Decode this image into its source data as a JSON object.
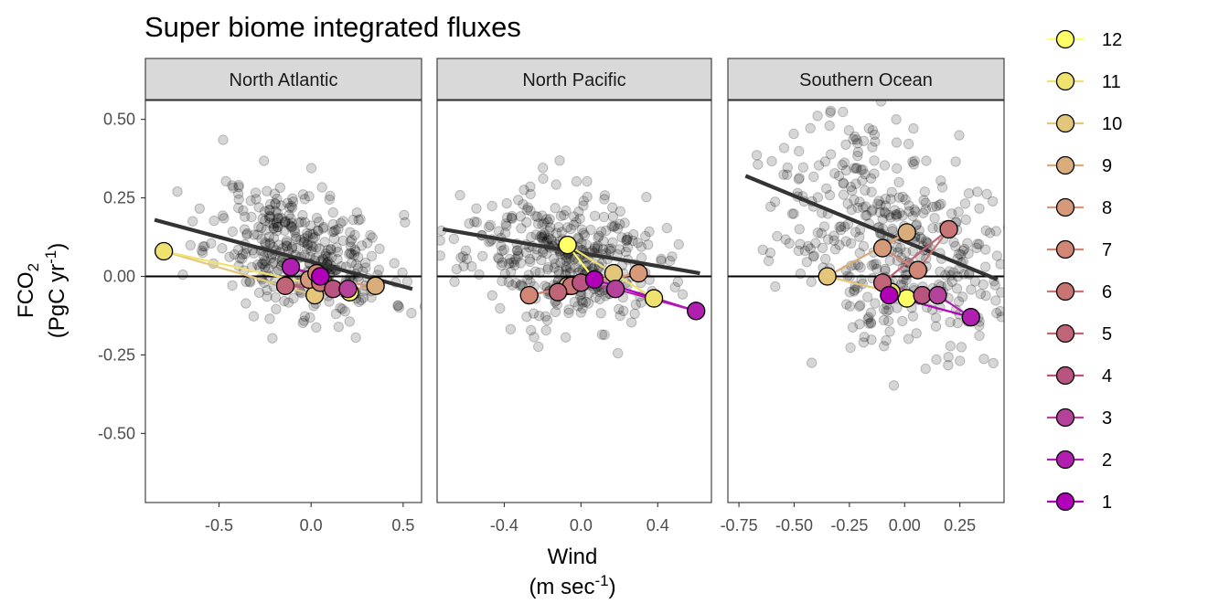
{
  "chart_data": {
    "type": "scatter",
    "title": "Super biome integrated fluxes",
    "ylabel": {
      "main": "FCO",
      "sub": "2",
      "unit_pre": "(PgC yr",
      "unit_sup": "-1",
      "unit_post": ")"
    },
    "xlabel": {
      "main": "Wind",
      "unit_pre": "(m sec",
      "unit_sup": "-1",
      "unit_post": ")"
    },
    "ylim": [
      -0.72,
      0.56
    ],
    "yticks": [
      0.5,
      0.25,
      0.0,
      -0.25,
      -0.5
    ],
    "ytick_labels": [
      "0.50",
      "0.25",
      "0.00",
      "-0.25",
      "-0.50"
    ],
    "grid": false,
    "legend_position": "right",
    "legend": [
      {
        "label": "12",
        "color": "#ffff66"
      },
      {
        "label": "11",
        "color": "#f0e26e"
      },
      {
        "label": "10",
        "color": "#e3c67a"
      },
      {
        "label": "9",
        "color": "#d9ad7a"
      },
      {
        "label": "8",
        "color": "#d69a7a"
      },
      {
        "label": "7",
        "color": "#d18676"
      },
      {
        "label": "6",
        "color": "#c87474"
      },
      {
        "label": "5",
        "color": "#c06478"
      },
      {
        "label": "4",
        "color": "#b9537f"
      },
      {
        "label": "3",
        "color": "#b5429a"
      },
      {
        "label": "2",
        "color": "#b01fb0"
      },
      {
        "label": "1",
        "color": "#b000b8"
      }
    ],
    "panels": [
      {
        "name": "North Atlantic",
        "xlim": [
          -0.9,
          0.6
        ],
        "xticks": [
          -0.5,
          0.0,
          0.5
        ],
        "xtick_labels": [
          "-0.5",
          "0.0",
          "0.5"
        ],
        "trend": [
          [
            -0.85,
            0.18
          ],
          [
            0.55,
            -0.04
          ]
        ],
        "cloud": {
          "n": 380,
          "x_mean": -0.05,
          "x_sd": 0.24,
          "y_mean": 0.08,
          "y_sd": 0.1,
          "slope": -0.15,
          "seed": 11
        },
        "months": [
          {
            "m": 1,
            "x": 0.05,
            "y": 0.0
          },
          {
            "m": 2,
            "x": -0.11,
            "y": 0.03
          },
          {
            "m": 3,
            "x": 0.2,
            "y": -0.04
          },
          {
            "m": 4,
            "x": 0.12,
            "y": -0.04
          },
          {
            "m": 5,
            "x": -0.14,
            "y": -0.03
          },
          {
            "m": 6,
            "x": 0.05,
            "y": -0.02
          },
          {
            "m": 7,
            "x": 0.03,
            "y": 0.01
          },
          {
            "m": 8,
            "x": -0.01,
            "y": -0.01
          },
          {
            "m": 9,
            "x": 0.35,
            "y": -0.03
          },
          {
            "m": 10,
            "x": 0.02,
            "y": -0.06
          },
          {
            "m": 11,
            "x": -0.8,
            "y": 0.08
          },
          {
            "m": 12,
            "x": 0.21,
            "y": -0.05
          }
        ]
      },
      {
        "name": "North Pacific",
        "xlim": [
          -0.75,
          0.68
        ],
        "xticks": [
          -0.4,
          0.0,
          0.4
        ],
        "xtick_labels": [
          "-0.4",
          "0.0",
          "0.4"
        ],
        "trend": [
          [
            -0.72,
            0.15
          ],
          [
            0.62,
            0.01
          ]
        ],
        "cloud": {
          "n": 380,
          "x_mean": -0.1,
          "x_sd": 0.25,
          "y_mean": 0.06,
          "y_sd": 0.1,
          "slope": -0.1,
          "seed": 23
        },
        "months": [
          {
            "m": 1,
            "x": 0.07,
            "y": -0.01
          },
          {
            "m": 2,
            "x": 0.6,
            "y": -0.11
          },
          {
            "m": 3,
            "x": 0.18,
            "y": -0.04
          },
          {
            "m": 4,
            "x": 0.0,
            "y": -0.02
          },
          {
            "m": 5,
            "x": -0.12,
            "y": -0.05
          },
          {
            "m": 6,
            "x": -0.05,
            "y": -0.03
          },
          {
            "m": 7,
            "x": -0.27,
            "y": -0.06
          },
          {
            "m": 8,
            "x": 0.3,
            "y": 0.01
          },
          {
            "m": 9,
            "x": -0.07,
            "y": -0.03
          },
          {
            "m": 10,
            "x": 0.17,
            "y": 0.01
          },
          {
            "m": 11,
            "x": 0.38,
            "y": -0.07
          },
          {
            "m": 12,
            "x": -0.07,
            "y": 0.1
          }
        ]
      },
      {
        "name": "Southern Ocean",
        "xlim": [
          -0.8,
          0.45
        ],
        "xticks": [
          -0.75,
          -0.5,
          -0.25,
          0.0,
          0.25
        ],
        "xtick_labels": [
          "-0.75",
          "-0.50",
          "-0.25",
          "0.00",
          "0.25"
        ],
        "trend": [
          [
            -0.72,
            0.32
          ],
          [
            0.42,
            -0.01
          ]
        ],
        "cloud": {
          "n": 420,
          "x_mean": -0.05,
          "x_sd": 0.26,
          "y_mean": 0.13,
          "y_sd": 0.17,
          "slope": -0.25,
          "seed": 37
        },
        "months": [
          {
            "m": 1,
            "x": -0.07,
            "y": -0.06
          },
          {
            "m": 2,
            "x": 0.3,
            "y": -0.13
          },
          {
            "m": 3,
            "x": 0.15,
            "y": -0.06
          },
          {
            "m": 4,
            "x": 0.08,
            "y": -0.06
          },
          {
            "m": 5,
            "x": -0.1,
            "y": -0.02
          },
          {
            "m": 6,
            "x": 0.2,
            "y": 0.15
          },
          {
            "m": 7,
            "x": 0.06,
            "y": 0.02
          },
          {
            "m": 8,
            "x": -0.1,
            "y": 0.09
          },
          {
            "m": 9,
            "x": 0.01,
            "y": 0.14
          },
          {
            "m": 10,
            "x": -0.35,
            "y": 0.0
          },
          {
            "m": 11,
            "x": -0.06,
            "y": -0.05
          },
          {
            "m": 12,
            "x": 0.01,
            "y": -0.07
          }
        ]
      }
    ]
  }
}
